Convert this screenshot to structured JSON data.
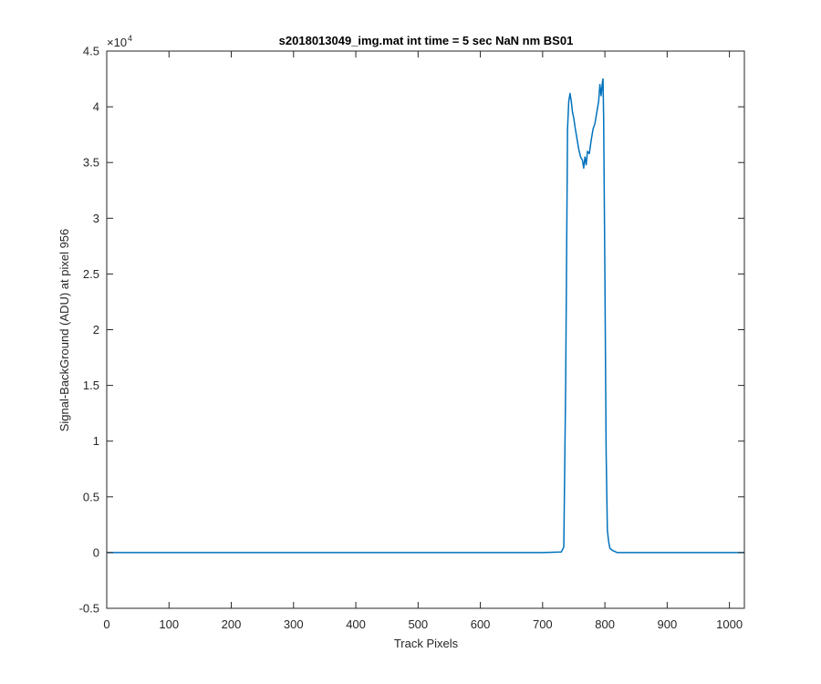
{
  "chart_data": {
    "type": "line",
    "title": "s2018013049_img.mat int time = 5 sec  NaN nm BS01",
    "xlabel": "Track Pixels",
    "ylabel": "Signal-BackGround (ADU) at pixel 956",
    "xlim": [
      0,
      1024
    ],
    "ylim": [
      -0.5,
      4.5
    ],
    "y_multiplier": "×10",
    "y_multiplier_exponent": "4",
    "x_ticks": [
      0,
      100,
      200,
      300,
      400,
      500,
      600,
      700,
      800,
      900,
      1000
    ],
    "x_tick_labels": [
      "0",
      "100",
      "200",
      "300",
      "400",
      "500",
      "600",
      "700",
      "800",
      "900",
      "1000"
    ],
    "y_ticks": [
      -0.5,
      0,
      0.5,
      1,
      1.5,
      2,
      2.5,
      3,
      3.5,
      4,
      4.5
    ],
    "y_tick_labels": [
      "-0.5",
      "0",
      "0.5",
      "1",
      "1.5",
      "2",
      "2.5",
      "3",
      "3.5",
      "4",
      "4.5"
    ],
    "grid": false,
    "line_color": "#0072BD",
    "axes_color": "#262626",
    "series": [
      {
        "x": [
          0,
          100,
          200,
          300,
          400,
          500,
          600,
          700,
          730,
          734,
          737,
          740,
          742,
          744,
          746,
          748,
          750,
          752,
          755,
          758,
          761,
          764,
          766,
          768,
          770,
          772,
          775,
          778,
          781,
          784,
          787,
          790,
          792,
          794,
          796,
          797,
          798,
          800,
          802,
          804,
          806,
          808,
          812,
          820,
          900,
          1000,
          1024
        ],
        "y": [
          0.0,
          0.0,
          0.0,
          0.0,
          0.0,
          0.0,
          0.0,
          0.0,
          0.005,
          0.05,
          1.5,
          3.8,
          4.05,
          4.12,
          4.05,
          3.95,
          3.9,
          3.82,
          3.72,
          3.62,
          3.55,
          3.52,
          3.45,
          3.55,
          3.48,
          3.6,
          3.58,
          3.7,
          3.8,
          3.85,
          3.95,
          4.05,
          4.2,
          4.1,
          4.22,
          4.25,
          3.9,
          2.5,
          0.9,
          0.2,
          0.1,
          0.04,
          0.02,
          0.0,
          0.0,
          0.0,
          0.0
        ]
      }
    ]
  }
}
